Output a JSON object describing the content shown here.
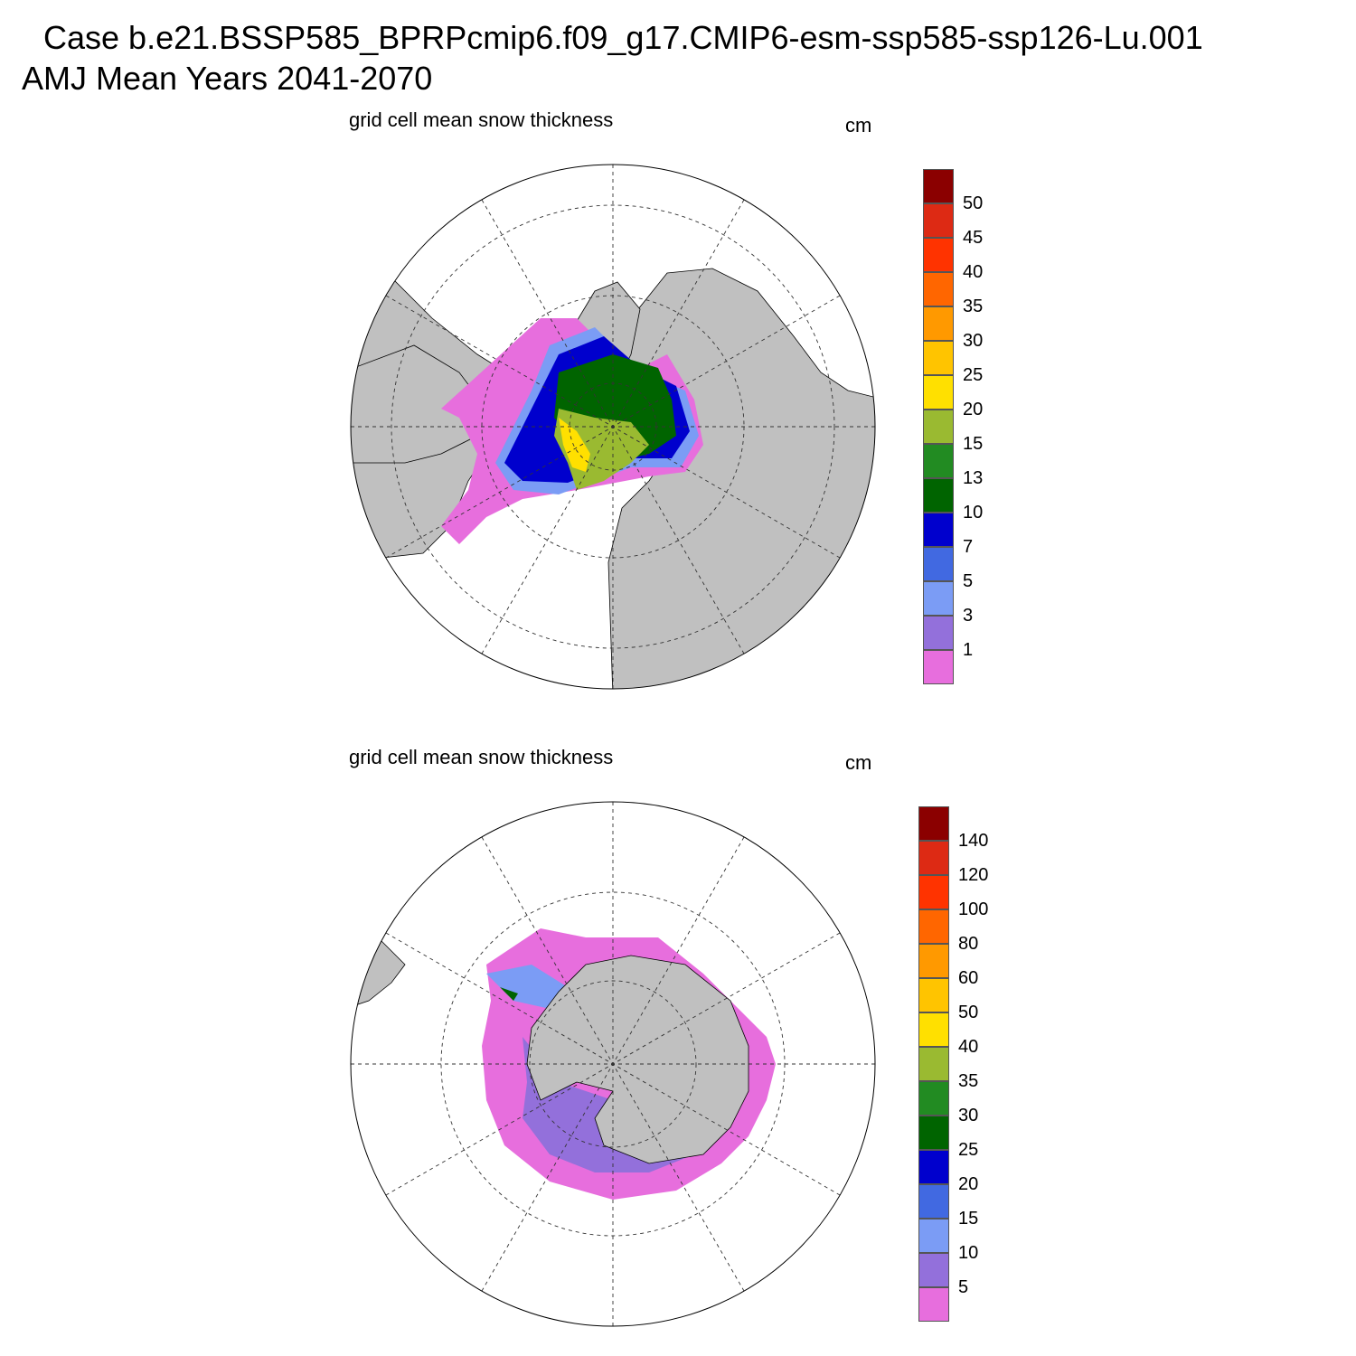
{
  "header": {
    "title_line1": "Case b.e21.BSSP585_BPRPcmip6.f09_g17.CMIP6-esm-ssp585-ssp126-Lu.001",
    "title_line2": "AMJ Mean   Years 2041-2070"
  },
  "colors": {
    "land": "#c0c0c0",
    "ocean": "#ffffff",
    "scale": [
      "#e76edd",
      "#9370db",
      "#7b9cf5",
      "#4169e1",
      "#0000cd",
      "#006400",
      "#228b22",
      "#9aba31",
      "#ffe000",
      "#ffc400",
      "#ff9900",
      "#ff6600",
      "#ff3300",
      "#dd2a14",
      "#8b0000"
    ]
  },
  "panels": [
    {
      "id": "arctic",
      "title": "grid cell mean snow thickness",
      "unit": "cm",
      "hemisphere": "north",
      "colorbar_levels": [
        "1",
        "3",
        "5",
        "7",
        "10",
        "13",
        "15",
        "20",
        "25",
        "30",
        "35",
        "40",
        "45",
        "50"
      ]
    },
    {
      "id": "antarctic",
      "title": "grid cell mean snow thickness",
      "unit": "cm",
      "hemisphere": "south",
      "colorbar_levels": [
        "5",
        "10",
        "15",
        "20",
        "25",
        "30",
        "35",
        "40",
        "50",
        "60",
        "80",
        "100",
        "120",
        "140"
      ]
    }
  ]
}
